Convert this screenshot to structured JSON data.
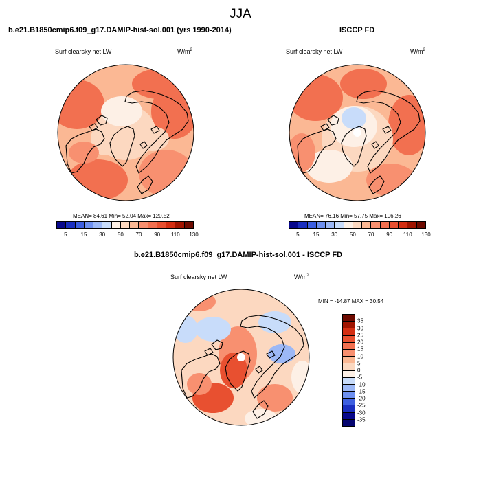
{
  "figure": {
    "season": "JJA"
  },
  "panels": {
    "model": {
      "title": "b.e21.B1850cmip6.f09_g17.DAMIP-hist-sol.001 (yrs 1990-2014)",
      "variable": "Surf clearsky net LW",
      "units": "W/m",
      "units_sup": "2",
      "stats": "MEAN=  84.61  Min=  52.04  Max= 120.52"
    },
    "obs": {
      "title": "ISCCP FD",
      "variable": "Surf clearsky net LW",
      "units": "W/m",
      "units_sup": "2",
      "stats": "MEAN=  76.16  Min=  57.75  Max= 106.26"
    },
    "diff": {
      "title": "b.e21.B1850cmip6.f09_g17.DAMIP-hist-sol.001 - ISCCP FD",
      "variable": "Surf clearsky net LW",
      "units": "W/m",
      "units_sup": "2",
      "stats": "MIN = -14.87 MAX =  30.54"
    }
  },
  "colorbar_abs": {
    "tick_labels": [
      "5",
      "15",
      "30",
      "50",
      "70",
      "90",
      "110",
      "130"
    ],
    "colors": [
      "#08088c",
      "#1a2fc0",
      "#3d5fe0",
      "#6e90f0",
      "#9cb8f6",
      "#c8dcfa",
      "#fdf0e6",
      "#fcd8c0",
      "#fbb894",
      "#f89070",
      "#f27050",
      "#e85030",
      "#d42e12",
      "#a01400",
      "#6e0a00"
    ]
  },
  "colorbar_diff": {
    "tick_labels": [
      "35",
      "30",
      "25",
      "20",
      "15",
      "10",
      "5",
      "0",
      "-5",
      "-10",
      "-15",
      "-20",
      "-25",
      "-30",
      "-35"
    ],
    "colors": [
      "#6e0a00",
      "#a01400",
      "#d42e12",
      "#e85030",
      "#f27050",
      "#f89070",
      "#fbb894",
      "#fcd8c0",
      "#fdf0e6",
      "#c8dcfa",
      "#9cb8f6",
      "#6e90f0",
      "#3d5fe0",
      "#1a2fc0",
      "#08088c",
      "#050570"
    ]
  },
  "map_colors": {
    "abs_base": "#fbb894",
    "abs_high": "#f27050",
    "abs_mid": "#f89070",
    "abs_low": "#fdf0e6",
    "abs_pale": "#fcd8c0",
    "abs_blue": "#c8dcfa",
    "diff_base": "#fcd8c0",
    "diff_pos": "#f89070",
    "diff_strong": "#e85030",
    "diff_neg": "#c8dcfa",
    "diff_neg2": "#9cb8f6",
    "diff_zero": "#fdf0e6",
    "coast": "#000000"
  }
}
